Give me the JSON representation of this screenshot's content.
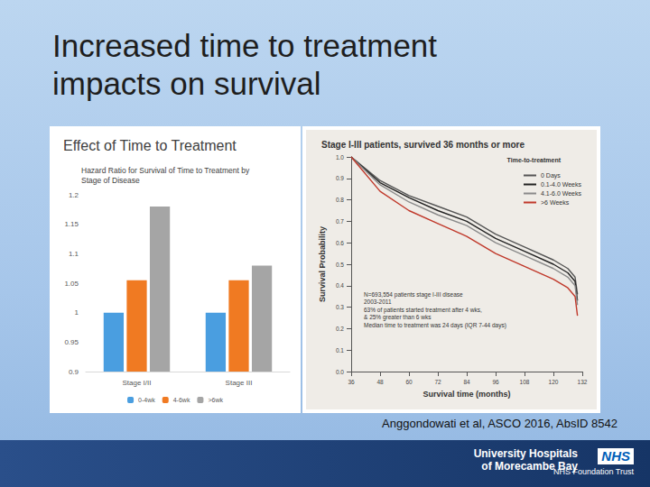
{
  "slide": {
    "title": "Increased time to treatment impacts on survival",
    "citation": "Anggondowati et al, ASCO 2016, AbsID 8542",
    "footer": {
      "org_lines": [
        "University Hospitals",
        "of Morecambe Bay"
      ],
      "nhs": "NHS",
      "trust": "NHS Foundation Trust"
    }
  },
  "chart_data": [
    {
      "type": "bar",
      "title": "Effect of Time to Treatment",
      "subtitle": "Hazard Ratio for Survival of Time to Treatment by Stage of Disease",
      "categories": [
        "Stage I/II",
        "Stage III"
      ],
      "series": [
        {
          "name": "0-4wk",
          "color": "#4a9ee0",
          "values": [
            1,
            1
          ]
        },
        {
          "name": "4-6wk",
          "color": "#f07a22",
          "values": [
            1.055,
            1.055
          ]
        },
        {
          "name": ">6wk",
          "color": "#a5a5a5",
          "values": [
            1.18,
            1.08
          ]
        }
      ],
      "ylim": [
        0.9,
        1.2
      ],
      "yticks": [
        0.9,
        0.95,
        1,
        1.05,
        1.1,
        1.15,
        1.2
      ],
      "grid": false,
      "legend": "bottom",
      "data_labels": false
    },
    {
      "type": "line",
      "title": "Stage I-III patients, survived 36 months or more",
      "x_label": "Survival time (months)",
      "y_label": "Survival Probability",
      "legend_title": "Time-to-treatment",
      "annotations": [
        "N=693,554 patients stage I-III disease",
        "2003-2011",
        "63% of patients started treatment after 4 wks,",
        "& 25% greater than 6 wks",
        "Median time to treatment was 24 days (IQR 7-44 days)"
      ],
      "x": [
        36,
        48,
        60,
        72,
        84,
        96,
        108,
        120,
        126,
        129,
        130
      ],
      "series": [
        {
          "name": "0 Days",
          "color": "#555555",
          "values": [
            1.0,
            0.89,
            0.82,
            0.77,
            0.72,
            0.64,
            0.58,
            0.52,
            0.48,
            0.44,
            0.36
          ]
        },
        {
          "name": "0.1-4.0 Weeks",
          "color": "#222222",
          "values": [
            1.0,
            0.88,
            0.81,
            0.75,
            0.7,
            0.62,
            0.56,
            0.5,
            0.46,
            0.42,
            0.33
          ]
        },
        {
          "name": "4.1-6.0 Weeks",
          "color": "#8a8a8a",
          "values": [
            1.0,
            0.87,
            0.79,
            0.73,
            0.68,
            0.6,
            0.54,
            0.48,
            0.44,
            0.4,
            0.31
          ]
        },
        {
          "name": ">6 Weeks",
          "color": "#c0392b",
          "values": [
            1.0,
            0.84,
            0.75,
            0.69,
            0.63,
            0.55,
            0.49,
            0.43,
            0.39,
            0.35,
            0.26
          ]
        }
      ],
      "xlim": [
        36,
        132
      ],
      "xticks": [
        36,
        48,
        60,
        72,
        84,
        96,
        108,
        120,
        132
      ],
      "ylim": [
        0,
        1
      ],
      "yticks": [
        {
          "value": 0,
          "label": "0.0"
        },
        0.1,
        0.2,
        0.3,
        0.4,
        0.5,
        0.6,
        0.7,
        0.8,
        0.9,
        {
          "value": 1,
          "label": "1.0"
        }
      ],
      "grid": false,
      "legend": "top-right",
      "data_labels": false
    }
  ]
}
